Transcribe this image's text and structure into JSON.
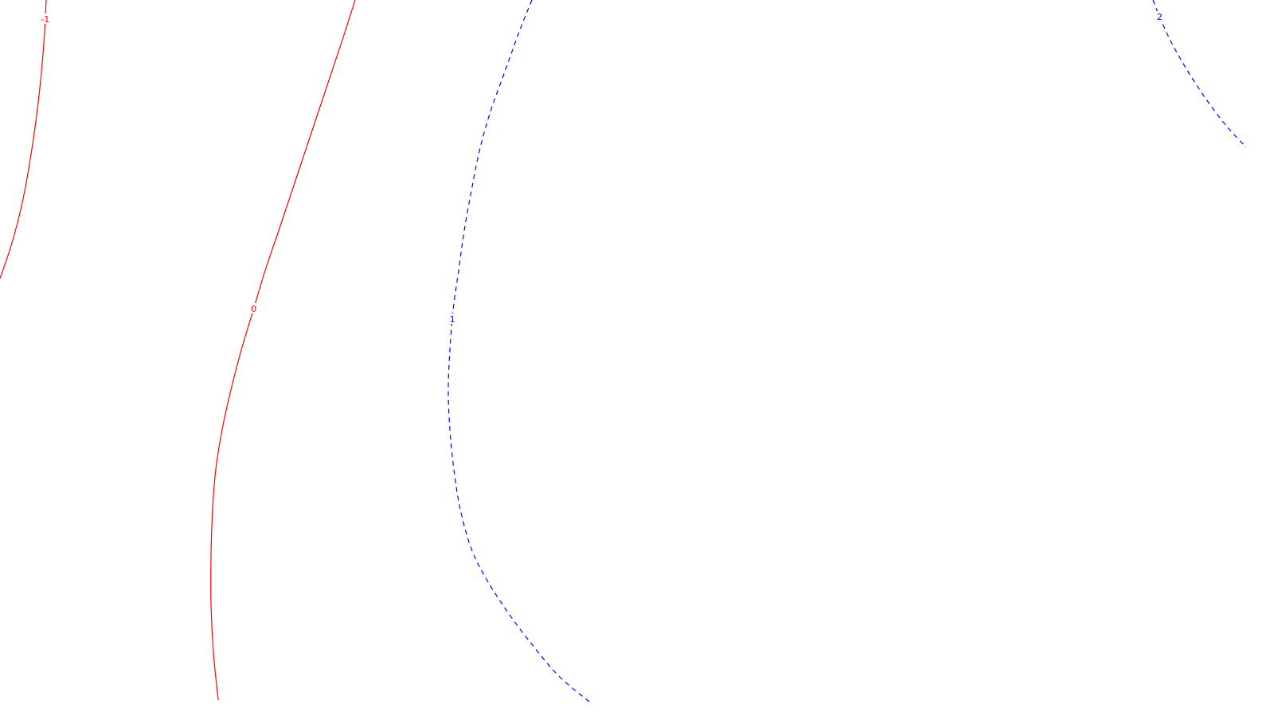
{
  "chart_data": {
    "type": "contour",
    "title": "",
    "xlabel": "",
    "ylabel": "",
    "grid": false,
    "legend": "none",
    "contours": [
      {
        "level": "-1",
        "color": "#ff0000",
        "style": "solid",
        "label": "-1",
        "points": [
          [
            58,
            0
          ],
          [
            56,
            40
          ],
          [
            53,
            80
          ],
          [
            49,
            120
          ],
          [
            44,
            160
          ],
          [
            38,
            200
          ],
          [
            31,
            240
          ],
          [
            22,
            280
          ],
          [
            12,
            315
          ],
          [
            0,
            350
          ]
        ],
        "label_at": 24
      },
      {
        "level": "0",
        "color": "#ff0000",
        "style": "solid",
        "label": "0",
        "points": [
          [
            446,
            0
          ],
          [
            430,
            50
          ],
          [
            410,
            110
          ],
          [
            390,
            170
          ],
          [
            370,
            230
          ],
          [
            350,
            290
          ],
          [
            333,
            340
          ],
          [
            318,
            390
          ],
          [
            303,
            440
          ],
          [
            290,
            490
          ],
          [
            279,
            540
          ],
          [
            271,
            590
          ],
          [
            267,
            640
          ],
          [
            265,
            700
          ],
          [
            265,
            760
          ],
          [
            268,
            820
          ],
          [
            274,
            880
          ]
        ],
        "label_at": 388
      },
      {
        "level": "1",
        "color": "#0000ff",
        "style": "dashed",
        "label": "1",
        "points": [
          [
            668,
            0
          ],
          [
            652,
            40
          ],
          [
            634,
            90
          ],
          [
            616,
            140
          ],
          [
            602,
            190
          ],
          [
            592,
            240
          ],
          [
            583,
            290
          ],
          [
            576,
            340
          ],
          [
            569,
            390
          ],
          [
            565,
            440
          ],
          [
            563,
            490
          ],
          [
            565,
            540
          ],
          [
            570,
            590
          ],
          [
            578,
            640
          ],
          [
            592,
            690
          ],
          [
            612,
            730
          ],
          [
            638,
            770
          ],
          [
            668,
            810
          ],
          [
            702,
            850
          ],
          [
            740,
            882
          ]
        ],
        "label_at": 401
      },
      {
        "level": "2",
        "color": "#0000ff",
        "style": "dashed",
        "label": "2",
        "points": [
          [
            1448,
            0
          ],
          [
            1458,
            25
          ],
          [
            1472,
            55
          ],
          [
            1492,
            90
          ],
          [
            1515,
            125
          ],
          [
            1540,
            158
          ],
          [
            1565,
            185
          ]
        ],
        "label_at": 21
      }
    ]
  }
}
